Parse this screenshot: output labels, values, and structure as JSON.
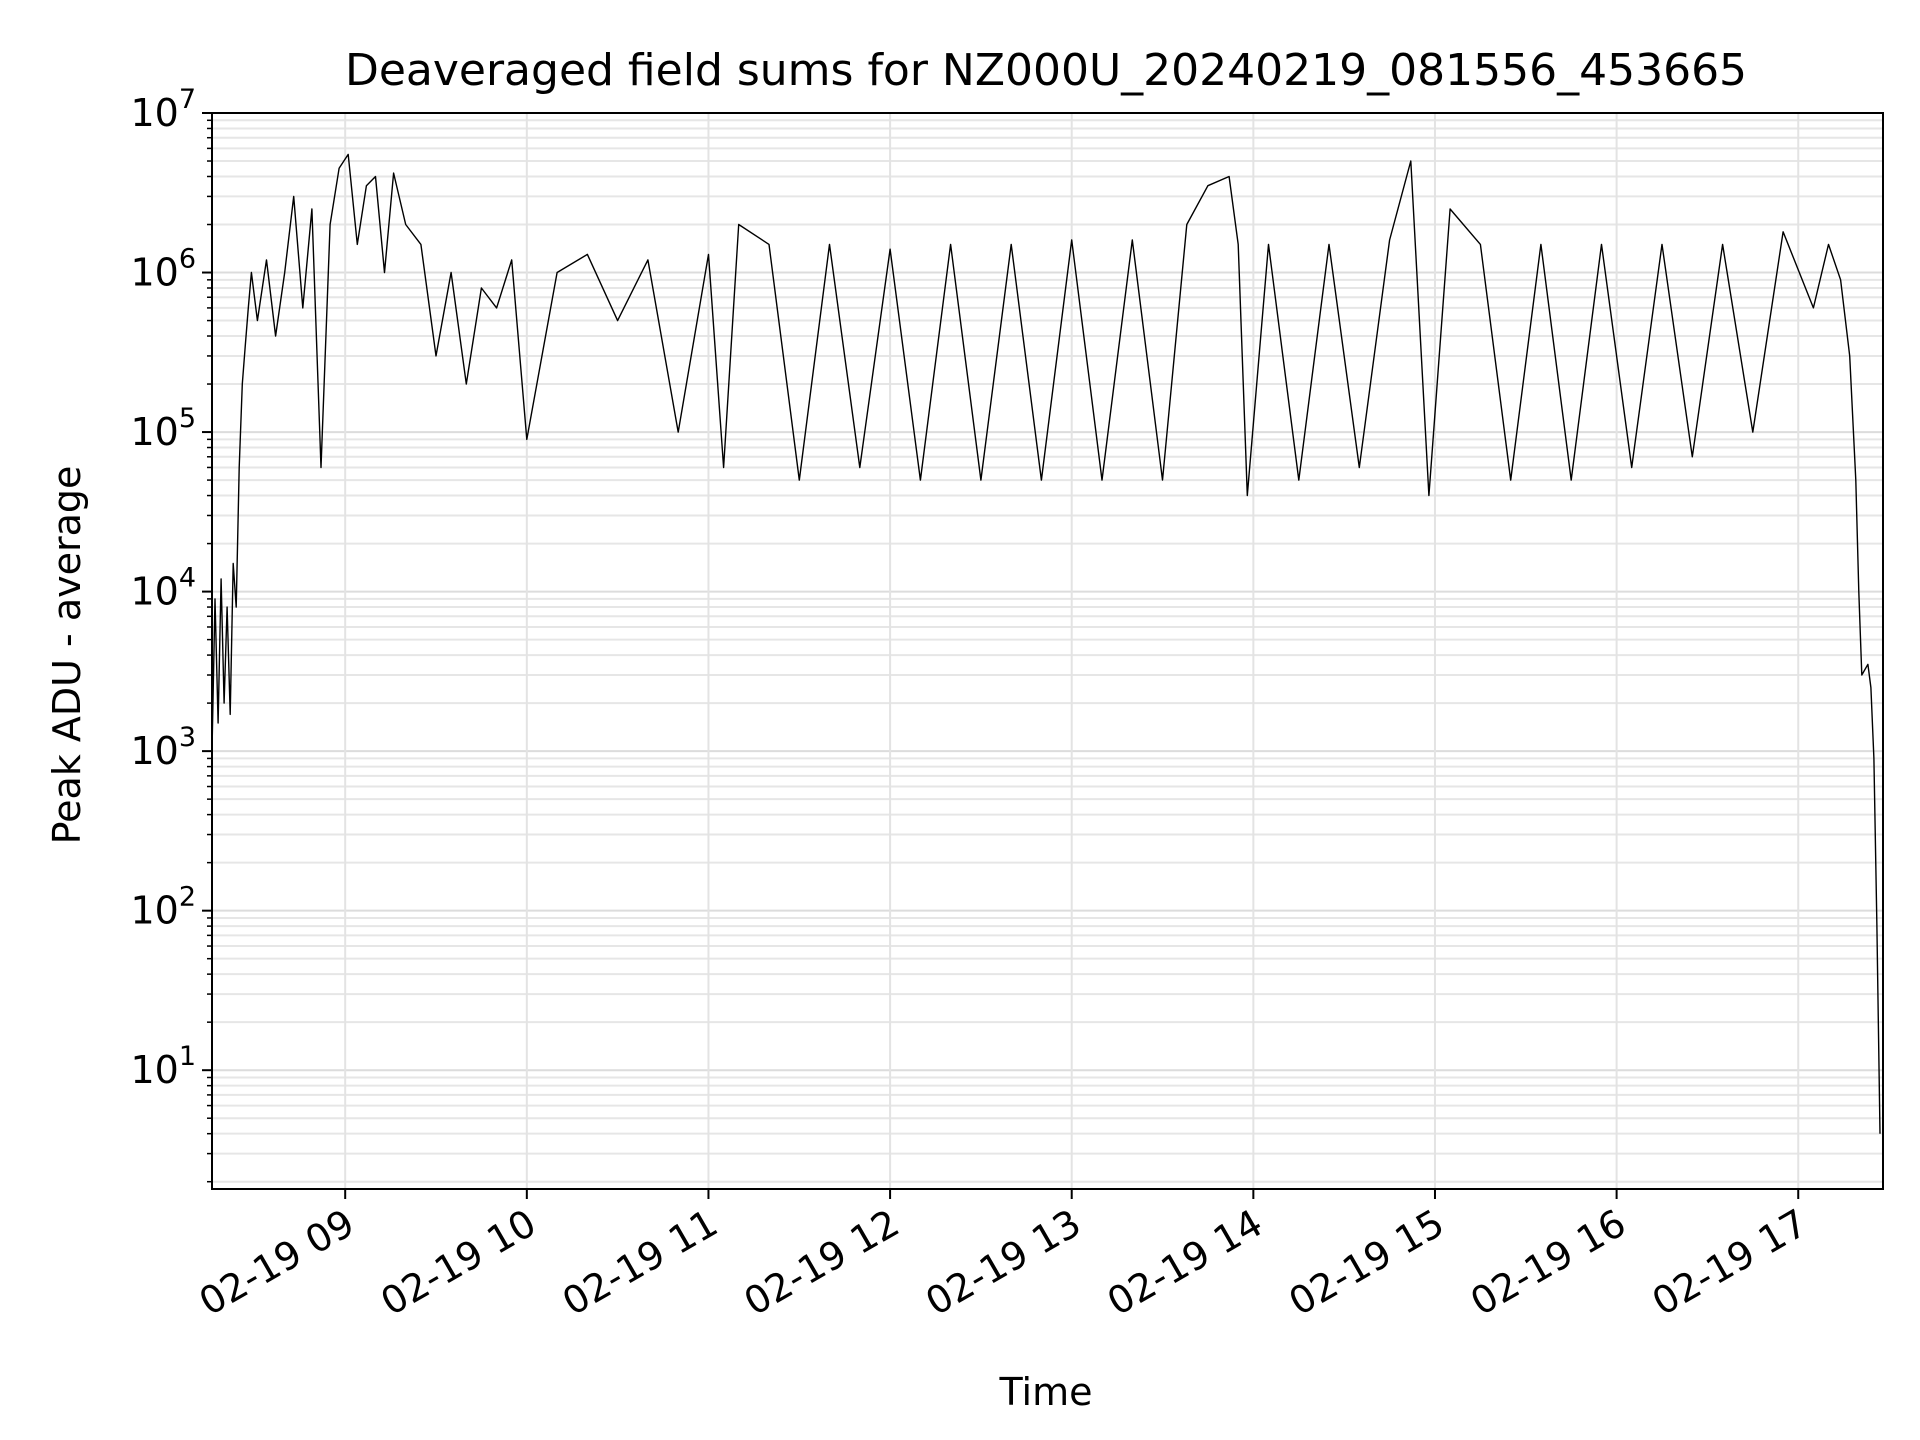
{
  "chart_data": {
    "type": "line",
    "title": "Deaveraged field sums for NZ000U_20240219_081556_453665",
    "xlabel": "Time",
    "ylabel": "Peak ADU - average",
    "yscale": "log",
    "ylim": [
      1.8,
      10000000
    ],
    "xlim": [
      "2024-02-19 08:16",
      "2024-02-19 17:28"
    ],
    "grid": "major and minor, light gray",
    "x_ticks": [
      {
        "t": "2024-02-19 09:00",
        "label": "02-19 09"
      },
      {
        "t": "2024-02-19 10:00",
        "label": "02-19 10"
      },
      {
        "t": "2024-02-19 11:00",
        "label": "02-19 11"
      },
      {
        "t": "2024-02-19 12:00",
        "label": "02-19 12"
      },
      {
        "t": "2024-02-19 13:00",
        "label": "02-19 13"
      },
      {
        "t": "2024-02-19 14:00",
        "label": "02-19 14"
      },
      {
        "t": "2024-02-19 15:00",
        "label": "02-19 15"
      },
      {
        "t": "2024-02-19 16:00",
        "label": "02-19 16"
      },
      {
        "t": "2024-02-19 17:00",
        "label": "02-19 17"
      }
    ],
    "y_ticks": [
      {
        "value": 10,
        "base": "10",
        "exp": "1"
      },
      {
        "value": 100,
        "base": "10",
        "exp": "2"
      },
      {
        "value": 1000,
        "base": "10",
        "exp": "3"
      },
      {
        "value": 10000,
        "base": "10",
        "exp": "4"
      },
      {
        "value": 100000,
        "base": "10",
        "exp": "5"
      },
      {
        "value": 1000000,
        "base": "10",
        "exp": "6"
      },
      {
        "value": 10000000,
        "base": "10",
        "exp": "7"
      }
    ],
    "series": [
      {
        "color": "#000000",
        "points": [
          [
            "2024-02-19 08:16",
            1000
          ],
          [
            "2024-02-19 08:17",
            9000
          ],
          [
            "2024-02-19 08:18",
            1500
          ],
          [
            "2024-02-19 08:19",
            12000
          ],
          [
            "2024-02-19 08:20",
            2000
          ],
          [
            "2024-02-19 08:21",
            8000
          ],
          [
            "2024-02-19 08:22",
            1700
          ],
          [
            "2024-02-19 08:23",
            15000
          ],
          [
            "2024-02-19 08:24",
            8000
          ],
          [
            "2024-02-19 08:25",
            60000
          ],
          [
            "2024-02-19 08:26",
            200000
          ],
          [
            "2024-02-19 08:27",
            350000
          ],
          [
            "2024-02-19 08:28",
            600000
          ],
          [
            "2024-02-19 08:29",
            1000000
          ],
          [
            "2024-02-19 08:31",
            500000
          ],
          [
            "2024-02-19 08:34",
            1200000
          ],
          [
            "2024-02-19 08:37",
            400000
          ],
          [
            "2024-02-19 08:40",
            1000000
          ],
          [
            "2024-02-19 08:43",
            3000000
          ],
          [
            "2024-02-19 08:46",
            600000
          ],
          [
            "2024-02-19 08:49",
            2500000
          ],
          [
            "2024-02-19 08:52",
            60000
          ],
          [
            "2024-02-19 08:55",
            2000000
          ],
          [
            "2024-02-19 08:58",
            4500000
          ],
          [
            "2024-02-19 09:01",
            5500000
          ],
          [
            "2024-02-19 09:04",
            1500000
          ],
          [
            "2024-02-19 09:07",
            3500000
          ],
          [
            "2024-02-19 09:10",
            4000000
          ],
          [
            "2024-02-19 09:13",
            1000000
          ],
          [
            "2024-02-19 09:16",
            4200000
          ],
          [
            "2024-02-19 09:20",
            2000000
          ],
          [
            "2024-02-19 09:25",
            1500000
          ],
          [
            "2024-02-19 09:30",
            300000
          ],
          [
            "2024-02-19 09:35",
            1000000
          ],
          [
            "2024-02-19 09:40",
            200000
          ],
          [
            "2024-02-19 09:45",
            800000
          ],
          [
            "2024-02-19 09:50",
            600000
          ],
          [
            "2024-02-19 09:55",
            1200000
          ],
          [
            "2024-02-19 10:00",
            90000
          ],
          [
            "2024-02-19 10:10",
            1000000
          ],
          [
            "2024-02-19 10:20",
            1300000
          ],
          [
            "2024-02-19 10:30",
            500000
          ],
          [
            "2024-02-19 10:40",
            1200000
          ],
          [
            "2024-02-19 10:50",
            100000
          ],
          [
            "2024-02-19 11:00",
            1300000
          ],
          [
            "2024-02-19 11:05",
            60000
          ],
          [
            "2024-02-19 11:10",
            2000000
          ],
          [
            "2024-02-19 11:20",
            1500000
          ],
          [
            "2024-02-19 11:30",
            50000
          ],
          [
            "2024-02-19 11:40",
            1500000
          ],
          [
            "2024-02-19 11:50",
            60000
          ],
          [
            "2024-02-19 12:00",
            1400000
          ],
          [
            "2024-02-19 12:10",
            50000
          ],
          [
            "2024-02-19 12:20",
            1500000
          ],
          [
            "2024-02-19 12:30",
            50000
          ],
          [
            "2024-02-19 12:40",
            1500000
          ],
          [
            "2024-02-19 12:50",
            50000
          ],
          [
            "2024-02-19 13:00",
            1600000
          ],
          [
            "2024-02-19 13:10",
            50000
          ],
          [
            "2024-02-19 13:20",
            1600000
          ],
          [
            "2024-02-19 13:30",
            50000
          ],
          [
            "2024-02-19 13:38",
            2000000
          ],
          [
            "2024-02-19 13:45",
            3500000
          ],
          [
            "2024-02-19 13:52",
            4000000
          ],
          [
            "2024-02-19 13:55",
            1500000
          ],
          [
            "2024-02-19 13:58",
            40000
          ],
          [
            "2024-02-19 14:05",
            1500000
          ],
          [
            "2024-02-19 14:15",
            50000
          ],
          [
            "2024-02-19 14:25",
            1500000
          ],
          [
            "2024-02-19 14:35",
            60000
          ],
          [
            "2024-02-19 14:45",
            1600000
          ],
          [
            "2024-02-19 14:52",
            5000000
          ],
          [
            "2024-02-19 14:58",
            40000
          ],
          [
            "2024-02-19 15:05",
            2500000
          ],
          [
            "2024-02-19 15:15",
            1500000
          ],
          [
            "2024-02-19 15:25",
            50000
          ],
          [
            "2024-02-19 15:35",
            1500000
          ],
          [
            "2024-02-19 15:45",
            50000
          ],
          [
            "2024-02-19 15:55",
            1500000
          ],
          [
            "2024-02-19 16:05",
            60000
          ],
          [
            "2024-02-19 16:15",
            1500000
          ],
          [
            "2024-02-19 16:25",
            70000
          ],
          [
            "2024-02-19 16:35",
            1500000
          ],
          [
            "2024-02-19 16:45",
            100000
          ],
          [
            "2024-02-19 16:55",
            1800000
          ],
          [
            "2024-02-19 17:05",
            600000
          ],
          [
            "2024-02-19 17:10",
            1500000
          ],
          [
            "2024-02-19 17:14",
            900000
          ],
          [
            "2024-02-19 17:17",
            300000
          ],
          [
            "2024-02-19 17:19",
            50000
          ],
          [
            "2024-02-19 17:20",
            10000
          ],
          [
            "2024-02-19 17:21",
            3000
          ],
          [
            "2024-02-19 17:23",
            3500
          ],
          [
            "2024-02-19 17:24",
            2500
          ],
          [
            "2024-02-19 17:25",
            900
          ],
          [
            "2024-02-19 17:26",
            80
          ],
          [
            "2024-02-19 17:27",
            4
          ]
        ]
      }
    ]
  }
}
